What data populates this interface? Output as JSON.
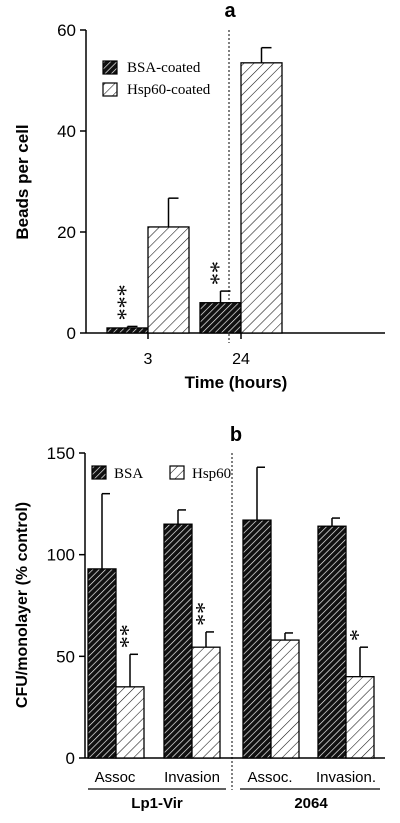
{
  "chart_data": [
    {
      "type": "bar",
      "panel_label": "a",
      "xlabel": "Time (hours)",
      "ylabel": "Beads per cell",
      "ylim": [
        0,
        60
      ],
      "yticks": [
        "0",
        "20",
        "40",
        "60"
      ],
      "categories": [
        "3",
        "24"
      ],
      "series": [
        {
          "name": "BSA-coated",
          "values": [
            1,
            6
          ],
          "errors": [
            0.3,
            2.3
          ],
          "pattern": "dense"
        },
        {
          "name": "Hsp60-coated",
          "values": [
            21,
            53.5
          ],
          "errors": [
            5.7,
            3.0
          ],
          "pattern": "light"
        }
      ],
      "annotations": [
        {
          "category": 0,
          "series": 0,
          "text": "***"
        },
        {
          "category": 1,
          "series": 0,
          "text": "**"
        }
      ],
      "legend_position": "top-left",
      "grid": false,
      "divider_between_groups": true
    },
    {
      "type": "bar",
      "panel_label": "b",
      "ylabel": "CFU/monolayer (% control)",
      "ylim": [
        0,
        150
      ],
      "yticks": [
        "0",
        "50",
        "100",
        "150"
      ],
      "categories": [
        "Assoc",
        "Invasion",
        "Assoc.",
        "Invasion."
      ],
      "groups": [
        {
          "label": "Lp1-Vir",
          "categories": [
            0,
            1
          ]
        },
        {
          "label": "2064",
          "categories": [
            2,
            3
          ]
        }
      ],
      "series": [
        {
          "name": "BSA",
          "values": [
            93,
            115,
            117,
            114
          ],
          "errors": [
            37,
            7,
            26,
            4
          ],
          "pattern": "dense"
        },
        {
          "name": "Hsp60",
          "values": [
            35,
            54.5,
            58,
            40
          ],
          "errors": [
            16,
            7.5,
            3.5,
            14.5
          ],
          "pattern": "light"
        }
      ],
      "annotations": [
        {
          "category": 0,
          "series": 1,
          "text": "**"
        },
        {
          "category": 1,
          "series": 1,
          "text": "**"
        },
        {
          "category": 3,
          "series": 1,
          "text": "*"
        }
      ],
      "legend_position": "top",
      "grid": false,
      "divider_between_groups": true
    }
  ]
}
